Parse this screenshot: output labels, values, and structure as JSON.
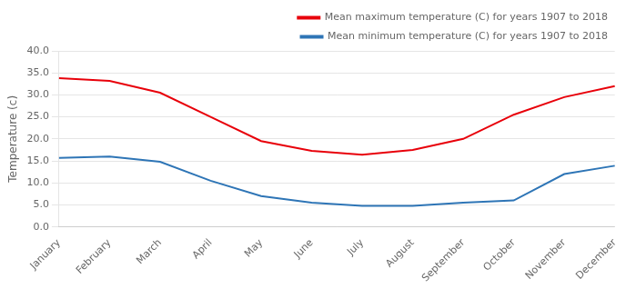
{
  "chart_data": {
    "type": "line",
    "categories": [
      "January",
      "February",
      "March",
      "April",
      "May",
      "June",
      "July",
      "August",
      "September",
      "October",
      "November",
      "December"
    ],
    "series": [
      {
        "name": "Mean maximum temperature (C) for years 1907 to 2018",
        "color": "#e8000a",
        "values": [
          33.8,
          33.2,
          30.5,
          25.0,
          19.5,
          17.3,
          16.4,
          17.5,
          20.0,
          25.5,
          29.5,
          32.0
        ]
      },
      {
        "name": "Mean minimum temperature (C) for years 1907 to 2018",
        "color": "#2e75b6",
        "values": [
          15.7,
          16.0,
          14.8,
          10.5,
          7.0,
          5.5,
          4.8,
          4.8,
          5.5,
          6.0,
          12.0,
          13.9
        ]
      }
    ],
    "ylabel": "Temperature (c)",
    "ylim": [
      0.0,
      40.0
    ],
    "yticks": [
      {
        "value": 0.0,
        "label": "0.0"
      },
      {
        "value": 5.0,
        "label": "5.0"
      },
      {
        "value": 10.0,
        "label": "10.0"
      },
      {
        "value": 15.0,
        "label": "15.0"
      },
      {
        "value": 20.0,
        "label": "20.0"
      },
      {
        "value": 25.0,
        "label": "25.0"
      },
      {
        "value": 30.0,
        "label": "30.0"
      },
      {
        "value": 35.0,
        "label": "35.0"
      },
      {
        "value": 40.0,
        "label": "40.0"
      }
    ],
    "grid": true,
    "legend": "upper right"
  }
}
